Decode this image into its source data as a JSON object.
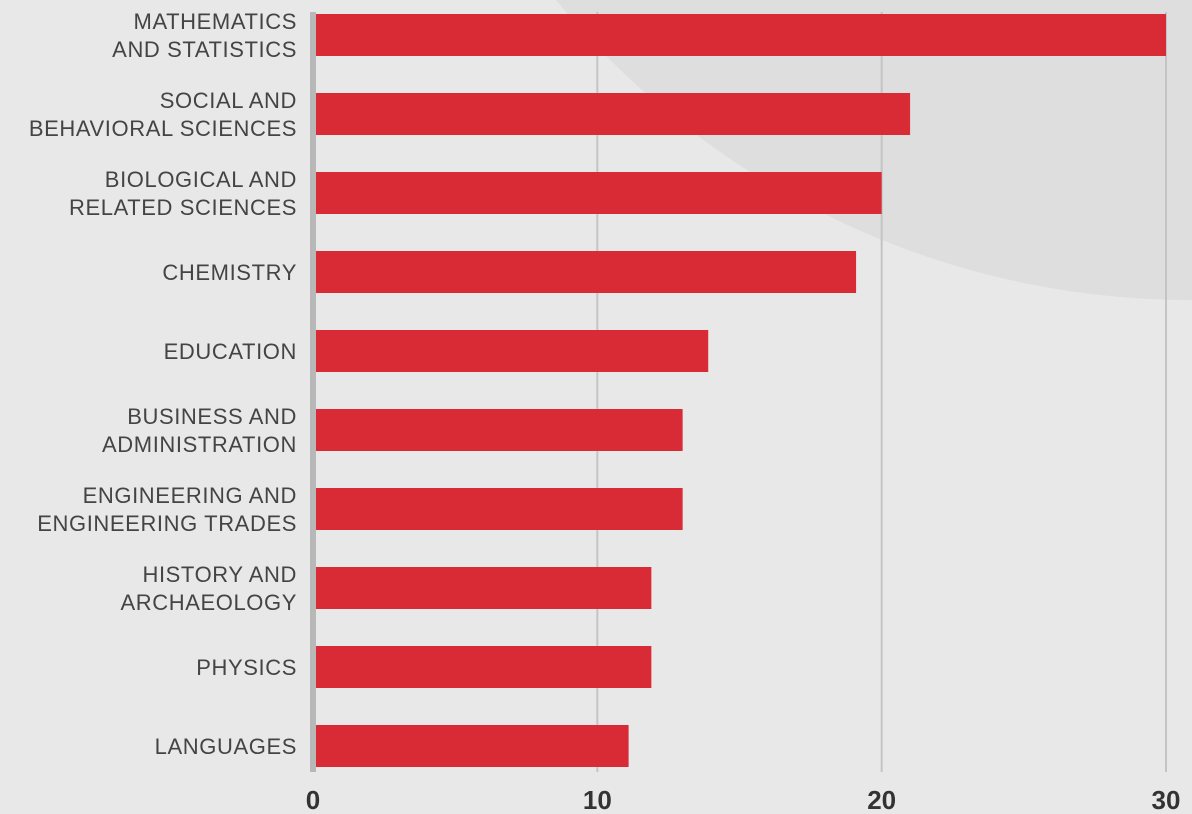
{
  "chart_data": {
    "type": "bar",
    "orientation": "horizontal",
    "categories": [
      [
        "MATHEMATICS",
        "AND STATISTICS"
      ],
      [
        "SOCIAL AND",
        "BEHAVIORAL SCIENCES"
      ],
      [
        "BIOLOGICAL AND",
        "RELATED SCIENCES"
      ],
      [
        "CHEMISTRY"
      ],
      [
        "EDUCATION"
      ],
      [
        "BUSINESS AND",
        "ADMINISTRATION"
      ],
      [
        "ENGINEERING AND",
        "ENGINEERING TRADES"
      ],
      [
        "HISTORY AND",
        "ARCHAEOLOGY"
      ],
      [
        "PHYSICS"
      ],
      [
        "LANGUAGES"
      ]
    ],
    "values": [
      30,
      21,
      20,
      19.1,
      13.9,
      13,
      13,
      11.9,
      11.9,
      11.1
    ],
    "xlim": [
      0,
      30
    ],
    "x_ticks": [
      "0",
      "10",
      "20",
      "30"
    ],
    "grid": true,
    "colors": {
      "bar": "#d92b36",
      "background": "#e8e8e8",
      "decor_arc": "#dedede",
      "grid": "#c4c4c4",
      "axis": "#b8b8b8",
      "label": "#444444",
      "tick": "#333333"
    }
  }
}
